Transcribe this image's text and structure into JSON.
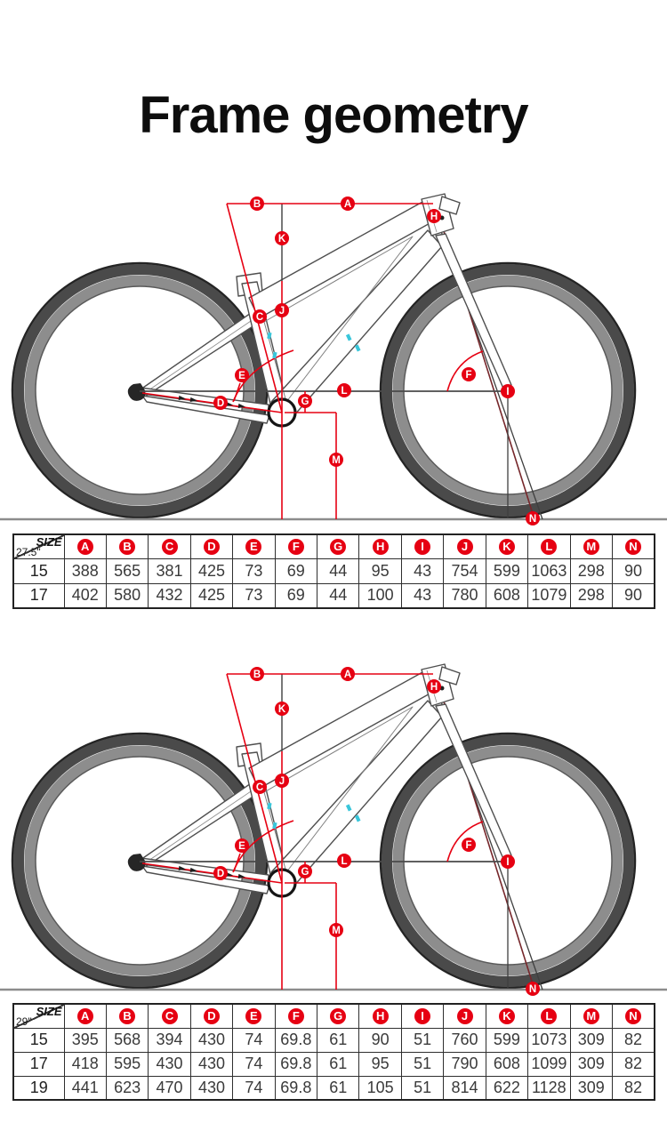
{
  "title": "Frame geometry",
  "accent_color": "#e60012",
  "diagram_labels": [
    "A",
    "B",
    "C",
    "D",
    "E",
    "F",
    "G",
    "H",
    "I",
    "J",
    "K",
    "L",
    "M",
    "N"
  ],
  "tables": [
    {
      "size_label": "SIZE",
      "wheel": "27.5\"",
      "columns": [
        "A",
        "B",
        "C",
        "D",
        "E",
        "F",
        "G",
        "H",
        "I",
        "J",
        "K",
        "L",
        "M",
        "N"
      ],
      "rows": [
        {
          "size": "15",
          "values": [
            "388",
            "565",
            "381",
            "425",
            "73",
            "69",
            "44",
            "95",
            "43",
            "754",
            "599",
            "1063",
            "298",
            "90"
          ]
        },
        {
          "size": "17",
          "values": [
            "402",
            "580",
            "432",
            "425",
            "73",
            "69",
            "44",
            "100",
            "43",
            "780",
            "608",
            "1079",
            "298",
            "90"
          ]
        }
      ]
    },
    {
      "size_label": "SIZE",
      "wheel": "29\"",
      "columns": [
        "A",
        "B",
        "C",
        "D",
        "E",
        "F",
        "G",
        "H",
        "I",
        "J",
        "K",
        "L",
        "M",
        "N"
      ],
      "rows": [
        {
          "size": "15",
          "values": [
            "395",
            "568",
            "394",
            "430",
            "74",
            "69.8",
            "61",
            "90",
            "51",
            "760",
            "599",
            "1073",
            "309",
            "82"
          ]
        },
        {
          "size": "17",
          "values": [
            "418",
            "595",
            "430",
            "430",
            "74",
            "69.8",
            "61",
            "95",
            "51",
            "790",
            "608",
            "1099",
            "309",
            "82"
          ]
        },
        {
          "size": "19",
          "values": [
            "441",
            "623",
            "470",
            "430",
            "74",
            "69.8",
            "61",
            "105",
            "51",
            "814",
            "622",
            "1128",
            "309",
            "82"
          ]
        }
      ]
    }
  ]
}
